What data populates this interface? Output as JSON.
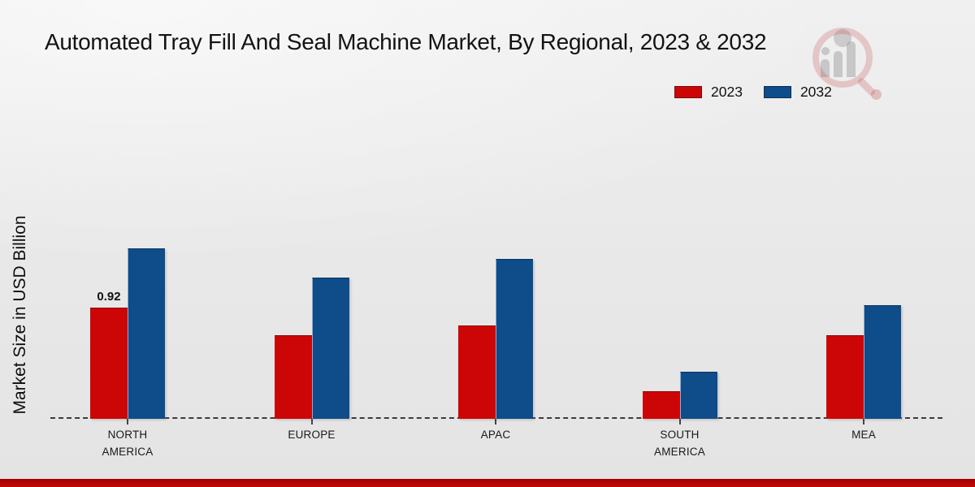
{
  "page": {
    "title": "Automated Tray Fill And Seal Machine Market, By Regional, 2023 & 2032",
    "ylabel": "Market Size in USD Billion"
  },
  "legend": {
    "items": [
      {
        "label": "2023",
        "color": "#cc0606"
      },
      {
        "label": "2032",
        "color": "#0e4c8a"
      }
    ]
  },
  "icons": {
    "watermark": "magnifier-bar-chart-logo"
  },
  "colors": {
    "series_2023": "#cc0606",
    "series_2032": "#0e4c8a",
    "axis_line": "#3c3c3c",
    "footer_bar": "#c00606",
    "background": "#e8e8e8"
  },
  "chart_data": {
    "type": "bar",
    "title": "Automated Tray Fill And Seal Machine Market, By Regional, 2023 & 2032",
    "xlabel": "",
    "ylabel": "Market Size in USD Billion",
    "categories": [
      "NORTH\nAMERICA",
      "EUROPE",
      "APAC",
      "SOUTH\nAMERICA",
      "MEA"
    ],
    "series": [
      {
        "name": "2023",
        "color": "#cc0606",
        "values": [
          0.92,
          0.69,
          0.77,
          0.23,
          0.69
        ]
      },
      {
        "name": "2032",
        "color": "#0e4c8a",
        "values": [
          1.41,
          1.17,
          1.32,
          0.39,
          0.94
        ]
      }
    ],
    "value_labels": [
      {
        "series": "2023",
        "category": "NORTH\nAMERICA",
        "text": "0.92"
      }
    ],
    "ylim": [
      0,
      1.55
    ],
    "grid": false,
    "legend_position": "top-right",
    "baseline_style": "dashed",
    "y_axis_ticks_visible": false
  }
}
